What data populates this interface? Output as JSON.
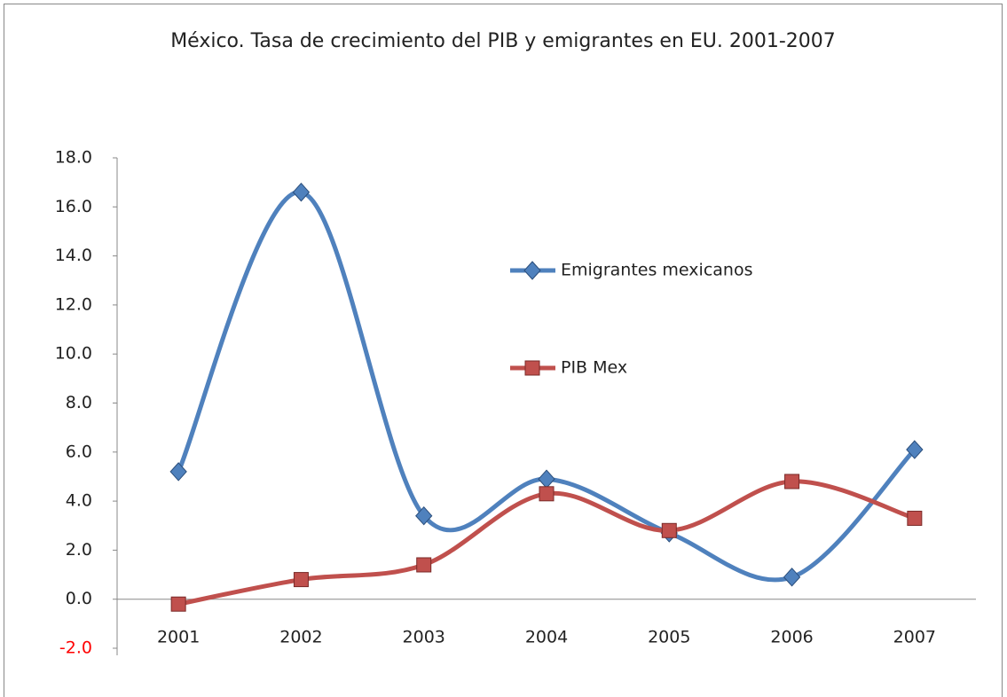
{
  "chart_data": {
    "type": "line",
    "title": "México. Tasa de crecimiento del PIB y emigrantes en EU. 2001-2007",
    "categories": [
      "2001",
      "2002",
      "2003",
      "2004",
      "2005",
      "2006",
      "2007"
    ],
    "series": [
      {
        "name": "Emigrantes mexicanos",
        "color": "#4f81bd",
        "marker": "diamond",
        "values": [
          5.2,
          16.6,
          3.4,
          4.9,
          2.7,
          0.9,
          6.1
        ]
      },
      {
        "name": "PIB Mex",
        "color": "#c0504d",
        "marker": "square",
        "values": [
          -0.2,
          0.8,
          1.4,
          4.3,
          2.8,
          4.8,
          3.3
        ]
      }
    ],
    "ylim": [
      -2,
      18
    ],
    "yticks": [
      {
        "value": -2,
        "label": "-2.0"
      },
      {
        "value": 0,
        "label": "0.0"
      },
      {
        "value": 2,
        "label": "2.0"
      },
      {
        "value": 4,
        "label": "4.0"
      },
      {
        "value": 6,
        "label": "6.0"
      },
      {
        "value": 8,
        "label": "8.0"
      },
      {
        "value": 10,
        "label": "10.0"
      },
      {
        "value": 12,
        "label": "12.0"
      },
      {
        "value": 14,
        "label": "14.0"
      },
      {
        "value": 16,
        "label": "16.0"
      },
      {
        "value": 18,
        "label": "18.0"
      }
    ],
    "negative_tick_color": "#ff0000",
    "smooth": true
  }
}
